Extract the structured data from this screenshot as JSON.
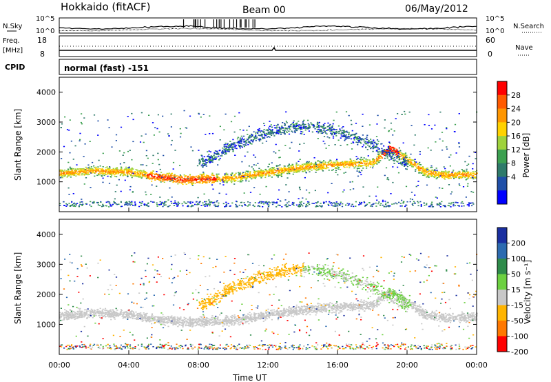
{
  "header": {
    "station": "Hokkaido (fitACF)",
    "beam": "Beam 00",
    "date": "06/May/2012"
  },
  "strip": {
    "nsky_label": "N.Sky",
    "nsearch_label": "N.Search",
    "noise_ticks_left": [
      "10^5",
      "10^0"
    ],
    "noise_ticks_right": [
      "10^5",
      "10^0"
    ],
    "freq_label_1": "Freq.",
    "freq_label_2": "[MHz]",
    "freq_ticks": [
      "18",
      "8"
    ],
    "nave_label": "Nave",
    "nave_ticks": [
      "60",
      "0"
    ],
    "cpid_label": "CPID",
    "cpid_value": "normal (fast) -151"
  },
  "power_colorbar": {
    "label": "Power [dB]",
    "ticks": [
      "28",
      "24",
      "20",
      "16",
      "12",
      "8",
      "4"
    ],
    "colors": [
      "#ff0000",
      "#ff5a00",
      "#ff9600",
      "#ffd200",
      "#9fd23c",
      "#3ca050",
      "#2e7a6a",
      "#1f4fa8",
      "#0000ff"
    ]
  },
  "velocity_colorbar": {
    "label": "Velocity [m s⁻¹]",
    "ticks": [
      "200",
      "100",
      "50",
      "15",
      "-15",
      "-50",
      "-100",
      "-200"
    ],
    "colors": [
      "#1a2fa0",
      "#2c6bb0",
      "#2e8b4a",
      "#6cd040",
      "#c8c8c8",
      "#ffb400",
      "#ff7800",
      "#ff0000"
    ]
  },
  "chart_data": [
    {
      "type": "heatmap",
      "name": "Power",
      "ylabel": "Slant Range [km]",
      "xlabel": "",
      "ylim": [
        0,
        4500
      ],
      "yticks": [
        "1000",
        "2000",
        "3000",
        "4000"
      ],
      "xlim_hours": [
        0,
        24
      ],
      "band_center_km": [
        [
          0,
          1300
        ],
        [
          2,
          1380
        ],
        [
          4,
          1340
        ],
        [
          6,
          1150
        ],
        [
          7,
          1100
        ],
        [
          8,
          1100
        ],
        [
          10,
          1150
        ],
        [
          12,
          1330
        ],
        [
          14,
          1500
        ],
        [
          16,
          1600
        ],
        [
          18,
          1650
        ],
        [
          19,
          2150
        ],
        [
          20,
          1750
        ],
        [
          21,
          1350
        ],
        [
          22,
          1250
        ],
        [
          24,
          1250
        ]
      ]
    },
    {
      "type": "heatmap",
      "name": "Velocity",
      "ylabel": "Slant Range [km]",
      "xlabel": "Time UT",
      "ylim": [
        0,
        4500
      ],
      "yticks": [
        "1000",
        "2000",
        "3000",
        "4000"
      ],
      "xlim_hours": [
        0,
        24
      ],
      "xticks": [
        "00:00",
        "04:00",
        "08:00",
        "12:00",
        "16:00",
        "20:00",
        "00:00"
      ]
    }
  ]
}
